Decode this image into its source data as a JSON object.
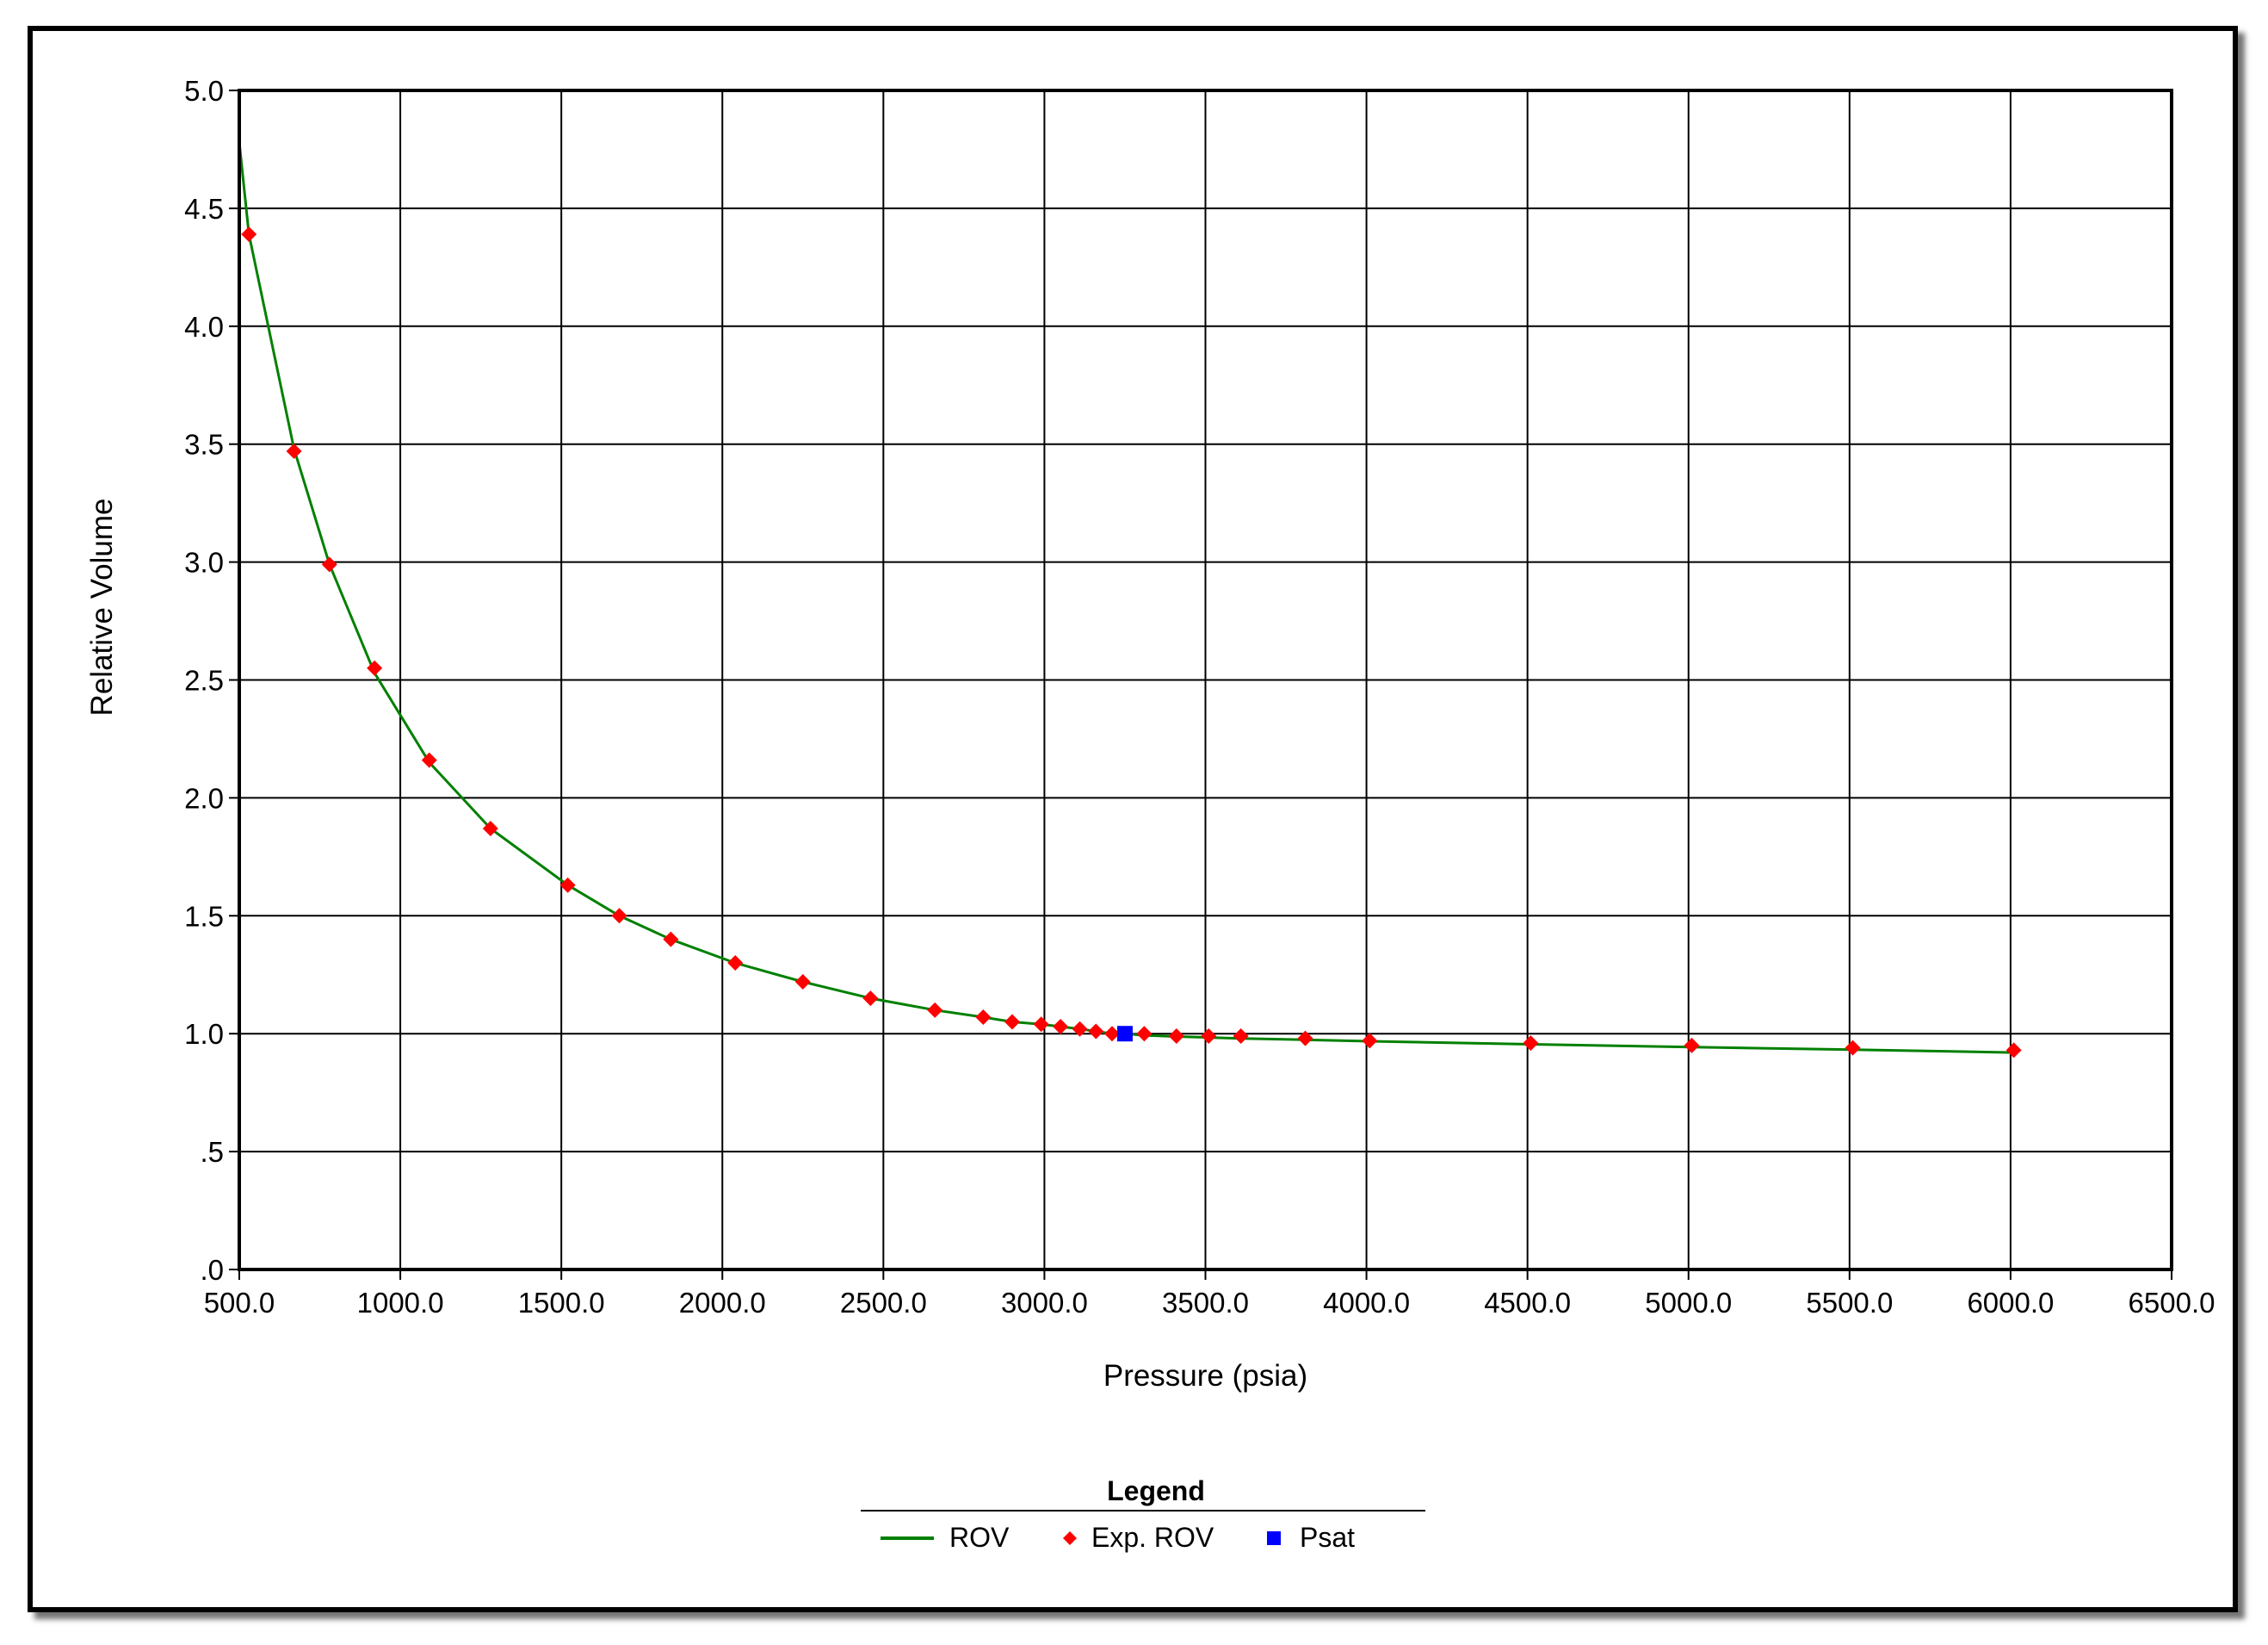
{
  "chart_data": {
    "type": "scatter",
    "title": "",
    "xlabel": "Pressure (psia)",
    "ylabel": "Relative Volume",
    "xlim": [
      500,
      6500
    ],
    "ylim": [
      0,
      5
    ],
    "grid": true,
    "x_ticks": [
      "500.0",
      "1000.0",
      "1500.0",
      "2000.0",
      "2500.0",
      "3000.0",
      "3500.0",
      "4000.0",
      "4500.0",
      "5000.0",
      "5500.0",
      "6000.0",
      "6500.0"
    ],
    "y_ticks": [
      ".0",
      ".5",
      "1.0",
      "1.5",
      "2.0",
      "2.5",
      "3.0",
      "3.5",
      "4.0",
      "4.5",
      "5.0"
    ],
    "legend": {
      "title": "Legend",
      "placement": "bottom-center"
    },
    "series": [
      {
        "name": "ROV",
        "kind": "line",
        "color": "#008000",
        "x": [
          500,
          530,
          670,
          780,
          920,
          1090,
          1280,
          1520,
          1680,
          1840,
          2040,
          2250,
          2460,
          2660,
          2810,
          2900,
          2990,
          3050,
          3110,
          3160,
          3210,
          3250,
          3310,
          3410,
          3510,
          3610,
          3810,
          4010,
          4510,
          5010,
          5510,
          6010
        ],
        "y": [
          4.78,
          4.39,
          3.48,
          2.99,
          2.53,
          2.15,
          1.87,
          1.63,
          1.5,
          1.4,
          1.3,
          1.22,
          1.15,
          1.1,
          1.07,
          1.05,
          1.04,
          1.03,
          1.02,
          1.01,
          1.0,
          1.0,
          0.993,
          0.988,
          0.984,
          0.98,
          0.974,
          0.968,
          0.955,
          0.943,
          0.932,
          0.92
        ]
      },
      {
        "name": "Exp. ROV",
        "kind": "markers",
        "marker": "diamond",
        "color": "#ff0000",
        "x": [
          530,
          670,
          780,
          920,
          1090,
          1280,
          1520,
          1680,
          1840,
          2040,
          2250,
          2460,
          2660,
          2810,
          2900,
          2990,
          3050,
          3110,
          3160,
          3210,
          3310,
          3410,
          3510,
          3610,
          3810,
          4010,
          4510,
          5010,
          5510,
          6010
        ],
        "y": [
          4.39,
          3.47,
          2.99,
          2.55,
          2.16,
          1.87,
          1.63,
          1.5,
          1.4,
          1.3,
          1.22,
          1.15,
          1.1,
          1.07,
          1.05,
          1.04,
          1.03,
          1.02,
          1.01,
          1.0,
          1.0,
          0.99,
          0.99,
          0.99,
          0.98,
          0.97,
          0.96,
          0.95,
          0.94,
          0.93
        ]
      },
      {
        "name": "Psat",
        "kind": "markers",
        "marker": "square",
        "color": "#0000ff",
        "x": [
          3250
        ],
        "y": [
          1.0
        ]
      }
    ]
  }
}
